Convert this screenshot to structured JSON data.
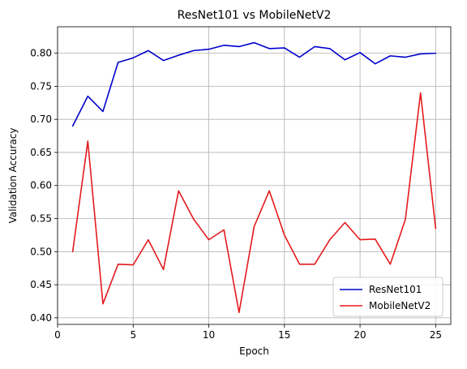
{
  "chart_data": {
    "type": "line",
    "title": "ResNet101 vs MobileNetV2",
    "xlabel": "Epoch",
    "ylabel": "Validation Accuracy",
    "xlim": [
      0,
      26
    ],
    "ylim": [
      0.39,
      0.84
    ],
    "x_ticks": [
      0,
      5,
      10,
      15,
      20,
      25
    ],
    "y_ticks": [
      0.4,
      0.45,
      0.5,
      0.55,
      0.6,
      0.65,
      0.7,
      0.75,
      0.8
    ],
    "x_tick_labels": [
      "0",
      "5",
      "10",
      "15",
      "20",
      "25"
    ],
    "y_tick_labels": [
      "0.40",
      "0.45",
      "0.50",
      "0.55",
      "0.60",
      "0.65",
      "0.70",
      "0.75",
      "0.80"
    ],
    "grid": true,
    "legend_position": "lower-right",
    "x": [
      1,
      2,
      3,
      4,
      5,
      6,
      7,
      8,
      9,
      10,
      11,
      12,
      13,
      14,
      15,
      16,
      17,
      18,
      19,
      20,
      21,
      22,
      23,
      24,
      25
    ],
    "series": [
      {
        "name": "ResNet101",
        "color": "#0000cc",
        "values": [
          0.69,
          0.735,
          0.712,
          0.786,
          0.793,
          0.804,
          0.789,
          0.797,
          0.804,
          0.806,
          0.812,
          0.81,
          0.816,
          0.807,
          0.808,
          0.794,
          0.81,
          0.807,
          0.79,
          0.801,
          0.784,
          0.796,
          0.794,
          0.799,
          0.8
        ]
      },
      {
        "name": "MobileNetV2",
        "color": "#e31a1c",
        "values": [
          0.5,
          0.667,
          0.421,
          0.481,
          0.48,
          0.518,
          0.473,
          0.592,
          0.549,
          0.518,
          0.533,
          0.408,
          0.538,
          0.592,
          0.525,
          0.481,
          0.481,
          0.518,
          0.544,
          0.518,
          0.519,
          0.481,
          0.549,
          0.74,
          0.535
        ]
      }
    ]
  }
}
